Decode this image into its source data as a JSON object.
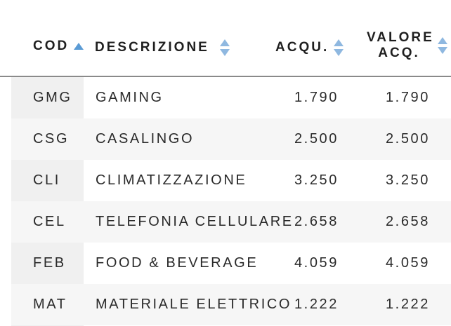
{
  "table": {
    "headers": {
      "cod": "COD",
      "descrizione": "DESCRIZIONE",
      "acqu": "ACQU.",
      "valore_line1": "VALORE",
      "valore_line2": "ACQ."
    },
    "rows": [
      {
        "cod": "GMG",
        "descrizione": "GAMING",
        "acqu": "1.790",
        "valore": "1.790"
      },
      {
        "cod": "CSG",
        "descrizione": "CASALINGO",
        "acqu": "2.500",
        "valore": "2.500"
      },
      {
        "cod": "CLI",
        "descrizione": "CLIMATIZZAZIONE",
        "acqu": "3.250",
        "valore": "3.250"
      },
      {
        "cod": "CEL",
        "descrizione": "TELEFONIA CELLULARE",
        "acqu": "2.658",
        "valore": "2.658"
      },
      {
        "cod": "FEB",
        "descrizione": "FOOD & BEVERAGE",
        "acqu": "4.059",
        "valore": "4.059"
      },
      {
        "cod": "MAT",
        "descrizione": "MATERIALE ELETTRICO",
        "acqu": "1.222",
        "valore": "1.222"
      }
    ]
  },
  "colors": {
    "sort_arrow": "#5b9bd5",
    "sort_arrow_inactive": "#8fb8e0"
  },
  "icons": {
    "sort_asc": "sort-ascending-icon",
    "sort_both": "sort-both-icon"
  }
}
